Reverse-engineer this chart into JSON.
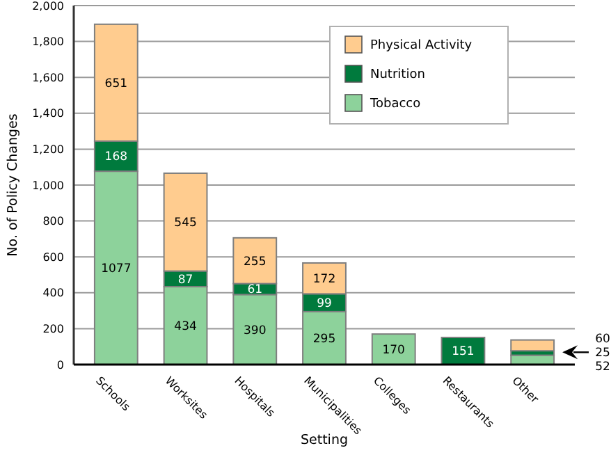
{
  "chart_data": {
    "type": "bar",
    "stacked": true,
    "xlabel": "Setting",
    "ylabel": "No. of Policy Changes",
    "categories": [
      "Schools",
      "Worksites",
      "Hospitals",
      "Municipalities",
      "Colleges",
      "Restaurants",
      "Other"
    ],
    "series": [
      {
        "name": "Tobacco",
        "color": "#8dd29b",
        "values": [
          1077,
          434,
          390,
          295,
          170,
          null,
          52
        ],
        "value_labels": [
          "1077",
          "434",
          "390",
          "295",
          "170",
          null,
          null
        ]
      },
      {
        "name": "Nutrition",
        "color": "#007a3d",
        "values": [
          168,
          87,
          61,
          99,
          null,
          151,
          25
        ],
        "value_labels": [
          "168",
          "87",
          "61",
          "99",
          null,
          "151",
          null
        ]
      },
      {
        "name": "Physical Activity",
        "color": "#ffcc8f",
        "values": [
          651,
          545,
          255,
          172,
          null,
          null,
          60
        ],
        "value_labels": [
          "651",
          "545",
          "255",
          "172",
          null,
          null,
          null
        ]
      }
    ],
    "annotations": [
      "60",
      "25",
      "52"
    ],
    "ylim": [
      0,
      2000
    ],
    "yticks": [
      0,
      200,
      400,
      600,
      800,
      {
        "value": 1000,
        "label": "1,000"
      },
      {
        "value": 1200,
        "label": "1,200"
      },
      {
        "value": 1400,
        "label": "1,400"
      },
      {
        "value": 1600,
        "label": "1,600"
      },
      {
        "value": 1800,
        "label": "1,800"
      },
      {
        "value": 2000,
        "label": "2,000"
      }
    ],
    "grid": "y",
    "legend": "top right"
  }
}
